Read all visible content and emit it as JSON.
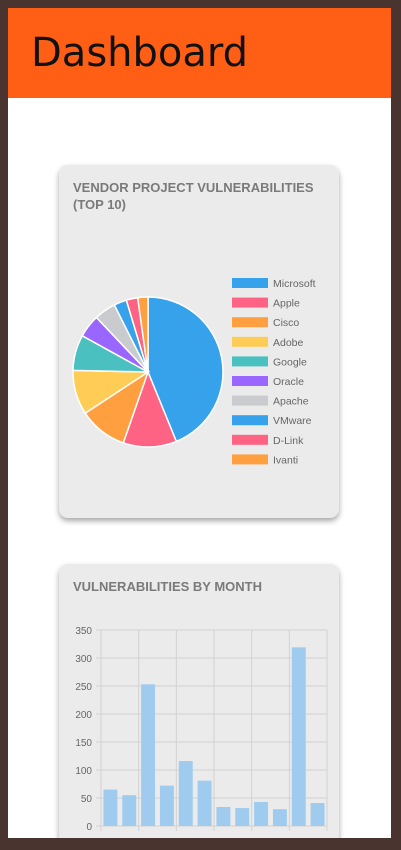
{
  "header": {
    "title": "Dashboard"
  },
  "cards": [
    {
      "title": "Vendor Project Vulnerabilities (Top 10)"
    },
    {
      "title": "Vulnerabilities By Month"
    }
  ],
  "colors": {
    "header_bg": "#ff5f15",
    "page_border": "#4a3430",
    "card_bg": "#ebebeb",
    "bar": "#9fcbef"
  },
  "chart_data": [
    {
      "type": "pie",
      "title": "Vendor Project Vulnerabilities (Top 10)",
      "legend_position": "right",
      "categories": [
        "Microsoft",
        "Apple",
        "Cisco",
        "Adobe",
        "Google",
        "Oracle",
        "Apache",
        "VMware",
        "D-Link",
        "Ivanti"
      ],
      "values": [
        160,
        42,
        38,
        35,
        28,
        18,
        17,
        10,
        9,
        8
      ],
      "colors": [
        "#36a2eb",
        "#ff6384",
        "#ff9f40",
        "#ffcd56",
        "#4bc0c0",
        "#9966ff",
        "#c9cbcf",
        "#36a2eb",
        "#ff6384",
        "#ff9f40"
      ]
    },
    {
      "type": "bar",
      "title": "Vulnerabilities By Month",
      "values": [
        65,
        55,
        253,
        72,
        116,
        81,
        34,
        32,
        43,
        30,
        319,
        41
      ],
      "ylim": [
        0,
        350
      ],
      "yticks": [
        0,
        50,
        100,
        150,
        200,
        250,
        300,
        350
      ],
      "grid": true
    }
  ]
}
